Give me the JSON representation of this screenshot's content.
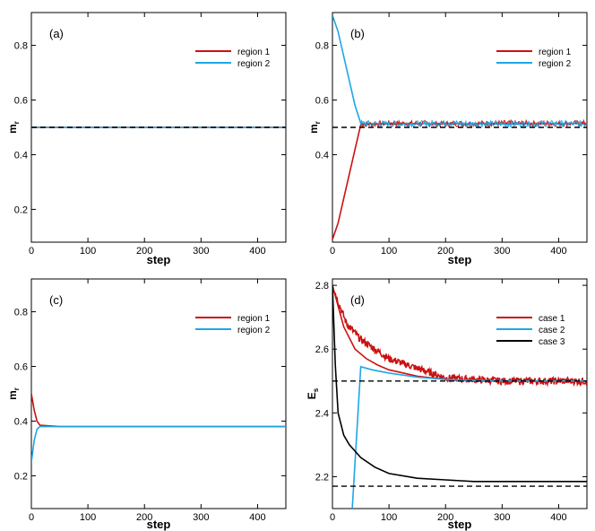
{
  "colors": {
    "region1": "#cc1111",
    "region2": "#1ea6e6",
    "case3": "#000000",
    "ref": "#000000"
  },
  "chart_data": [
    {
      "type": "line",
      "panel_label": "(a)",
      "xlabel": "step",
      "ylabel": "m",
      "ylabel_sub": "r",
      "xlim": [
        0,
        450
      ],
      "ylim": [
        0.08,
        0.92
      ],
      "xticks": [
        0,
        100,
        200,
        300,
        400
      ],
      "yticks": [
        0.2,
        0.4,
        0.6,
        0.8
      ],
      "legend_position": "top-right",
      "reference_lines": [
        0.5
      ],
      "series": [
        {
          "name": "region 1",
          "color_key": "region1",
          "x": [
            0,
            450
          ],
          "y": [
            0.5,
            0.5
          ]
        },
        {
          "name": "region 2",
          "color_key": "region2",
          "x": [
            0,
            450
          ],
          "y": [
            0.5,
            0.5
          ]
        }
      ]
    },
    {
      "type": "line",
      "panel_label": "(b)",
      "xlabel": "step",
      "ylabel": "m",
      "ylabel_sub": "r",
      "xlim": [
        0,
        450
      ],
      "ylim": [
        0.08,
        0.92
      ],
      "xticks": [
        0,
        100,
        200,
        300,
        400
      ],
      "yticks": [
        0.4,
        0.6,
        0.8
      ],
      "legend_position": "top-right",
      "reference_lines": [
        0.5
      ],
      "series": [
        {
          "name": "region 1",
          "color_key": "region1",
          "x": [
            0,
            10,
            20,
            30,
            40,
            50,
            100,
            200,
            300,
            400,
            450
          ],
          "y": [
            0.09,
            0.15,
            0.24,
            0.33,
            0.42,
            0.51,
            0.515,
            0.513,
            0.515,
            0.514,
            0.515
          ]
        },
        {
          "name": "region 2",
          "color_key": "region2",
          "x": [
            0,
            10,
            20,
            30,
            40,
            50,
            100,
            200,
            300,
            400,
            450
          ],
          "y": [
            0.91,
            0.85,
            0.76,
            0.67,
            0.58,
            0.515,
            0.512,
            0.515,
            0.512,
            0.514,
            0.513
          ]
        }
      ]
    },
    {
      "type": "line",
      "panel_label": "(c)",
      "xlabel": "step",
      "ylabel": "m",
      "ylabel_sub": "r",
      "xlim": [
        0,
        450
      ],
      "ylim": [
        0.08,
        0.92
      ],
      "xticks": [
        0,
        100,
        200,
        300,
        400
      ],
      "yticks": [
        0.2,
        0.4,
        0.6,
        0.8
      ],
      "legend_position": "top-right",
      "reference_lines": [],
      "series": [
        {
          "name": "region 1",
          "color_key": "region1",
          "x": [
            0,
            5,
            10,
            15,
            50,
            450
          ],
          "y": [
            0.5,
            0.44,
            0.4,
            0.385,
            0.38,
            0.38
          ]
        },
        {
          "name": "region 2",
          "color_key": "region2",
          "x": [
            0,
            5,
            10,
            15,
            50,
            450
          ],
          "y": [
            0.25,
            0.33,
            0.37,
            0.38,
            0.38,
            0.38
          ]
        }
      ]
    },
    {
      "type": "line",
      "panel_label": "(d)",
      "xlabel": "step",
      "ylabel": "E",
      "ylabel_sub": "s",
      "xlim": [
        0,
        450
      ],
      "ylim": [
        2.1,
        2.82
      ],
      "xticks": [
        0,
        100,
        200,
        300,
        400
      ],
      "yticks": [
        2.2,
        2.4,
        2.6,
        2.8
      ],
      "legend_position": "top-right",
      "reference_lines": [
        2.5,
        2.17
      ],
      "series": [
        {
          "name": "case 1",
          "color_key": "region1",
          "noisy": true,
          "x": [
            0,
            10,
            25,
            50,
            75,
            100,
            150,
            200,
            250,
            300,
            400,
            450
          ],
          "y": [
            2.8,
            2.75,
            2.68,
            2.63,
            2.6,
            2.57,
            2.54,
            2.51,
            2.505,
            2.5,
            2.5,
            2.5
          ]
        },
        {
          "name": "case 1 (mean)",
          "color_key": "region1",
          "legend": false,
          "x": [
            0,
            20,
            40,
            60,
            80,
            100,
            150,
            200,
            250,
            300,
            400,
            450
          ],
          "y": [
            2.8,
            2.67,
            2.6,
            2.57,
            2.55,
            2.535,
            2.515,
            2.505,
            2.5,
            2.5,
            2.5,
            2.5
          ]
        },
        {
          "name": "case 2",
          "color_key": "region2",
          "x": [
            35,
            50,
            70,
            100,
            150,
            200,
            250,
            300,
            400,
            450
          ],
          "y": [
            2.1,
            2.545,
            2.535,
            2.525,
            2.512,
            2.505,
            2.502,
            2.5,
            2.5,
            2.5
          ]
        },
        {
          "name": "case 3",
          "color_key": "case3",
          "x": [
            0,
            5,
            10,
            20,
            30,
            50,
            75,
            100,
            150,
            200,
            250,
            300,
            400,
            450
          ],
          "y": [
            2.8,
            2.55,
            2.4,
            2.33,
            2.3,
            2.26,
            2.23,
            2.21,
            2.195,
            2.19,
            2.185,
            2.185,
            2.185,
            2.185
          ]
        }
      ]
    }
  ]
}
